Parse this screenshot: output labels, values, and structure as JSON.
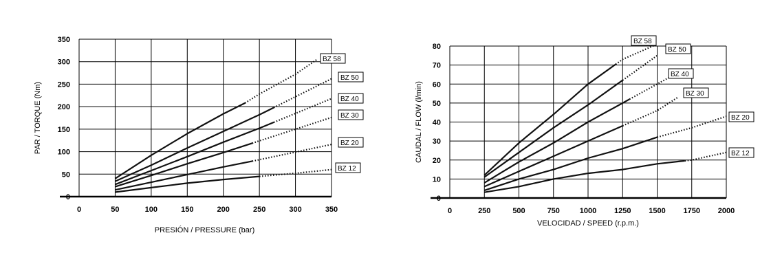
{
  "chart_data": [
    {
      "type": "line",
      "title": "",
      "xlabel": "PRESIÓN / PRESSURE (bar)",
      "ylabel": "PAR / TORQUE (Nm)",
      "xlim": [
        0,
        350
      ],
      "ylim": [
        0,
        350
      ],
      "xticks": [
        "0",
        "50",
        "100",
        "150",
        "200",
        "250",
        "300",
        "350"
      ],
      "yticks": [
        "0",
        "50",
        "100",
        "150",
        "200",
        "250",
        "300",
        "350"
      ],
      "grid": true,
      "line_style": "solid then dotted",
      "series": [
        {
          "name": "BZ 58",
          "x": [
            50,
            100,
            150,
            200,
            230,
            250,
            300,
            330
          ],
          "y": [
            40,
            92,
            140,
            184,
            208,
            228,
            272,
            305
          ],
          "solid_until": 230
        },
        {
          "name": "BZ 50",
          "x": [
            50,
            100,
            150,
            200,
            250,
            300,
            350
          ],
          "y": [
            34,
            70,
            108,
            145,
            182,
            222,
            262
          ],
          "solid_until": 270
        },
        {
          "name": "BZ 40",
          "x": [
            50,
            100,
            150,
            200,
            250,
            300,
            350
          ],
          "y": [
            27,
            58,
            89,
            121,
            152,
            185,
            218
          ],
          "solid_until": 270
        },
        {
          "name": "BZ 30",
          "x": [
            50,
            100,
            150,
            200,
            250,
            300,
            350
          ],
          "y": [
            22,
            47,
            73,
            98,
            124,
            150,
            176
          ],
          "solid_until": 240
        },
        {
          "name": "BZ 20",
          "x": [
            50,
            100,
            150,
            200,
            250,
            300,
            350
          ],
          "y": [
            15,
            32,
            49,
            66,
            82,
            99,
            116
          ],
          "solid_until": 240
        },
        {
          "name": "BZ 12",
          "x": [
            50,
            100,
            150,
            200,
            250,
            300,
            350
          ],
          "y": [
            10,
            20,
            30,
            38,
            45,
            52,
            60
          ],
          "solid_until": 250
        }
      ]
    },
    {
      "type": "line",
      "title": "",
      "xlabel": "VELOCIDAD / SPEED (r.p.m.)",
      "ylabel": "CAUDAL / FLOW (l/min)",
      "xlim": [
        0,
        2000
      ],
      "ylim": [
        0,
        80
      ],
      "xticks": [
        "0",
        "250",
        "500",
        "750",
        "1000",
        "1250",
        "1500",
        "1750",
        "2000"
      ],
      "yticks": [
        "0",
        "10",
        "20",
        "30",
        "40",
        "50",
        "60",
        "70",
        "80"
      ],
      "grid": true,
      "line_style": "solid then dotted",
      "series": [
        {
          "name": "BZ 58",
          "x": [
            250,
            500,
            750,
            1000,
            1250,
            1500
          ],
          "y": [
            12,
            29,
            44,
            60,
            73,
            81
          ],
          "solid_until": 1200
        },
        {
          "name": "BZ 50",
          "x": [
            250,
            500,
            750,
            1000,
            1250,
            1500
          ],
          "y": [
            11,
            24,
            37,
            49,
            62,
            75
          ],
          "solid_until": 1250
        },
        {
          "name": "BZ 40",
          "x": [
            250,
            500,
            750,
            1000,
            1250,
            1500,
            1600
          ],
          "y": [
            8,
            19,
            29,
            40,
            50,
            60,
            64
          ],
          "solid_until": 1300
        },
        {
          "name": "BZ 30",
          "x": [
            250,
            500,
            750,
            1000,
            1250,
            1500,
            1650
          ],
          "y": [
            6,
            14,
            22,
            30,
            38,
            46,
            53
          ],
          "solid_until": 1250
        },
        {
          "name": "BZ 20",
          "x": [
            250,
            500,
            750,
            1000,
            1250,
            1500,
            1750,
            2000
          ],
          "y": [
            4,
            10,
            15,
            21,
            26,
            32,
            37,
            43
          ],
          "solid_until": 1500
        },
        {
          "name": "BZ 12",
          "x": [
            250,
            500,
            750,
            1000,
            1250,
            1500,
            1750,
            2000
          ],
          "y": [
            3,
            6,
            10,
            13,
            15,
            18,
            20,
            24
          ],
          "solid_until": 1700
        }
      ]
    }
  ]
}
